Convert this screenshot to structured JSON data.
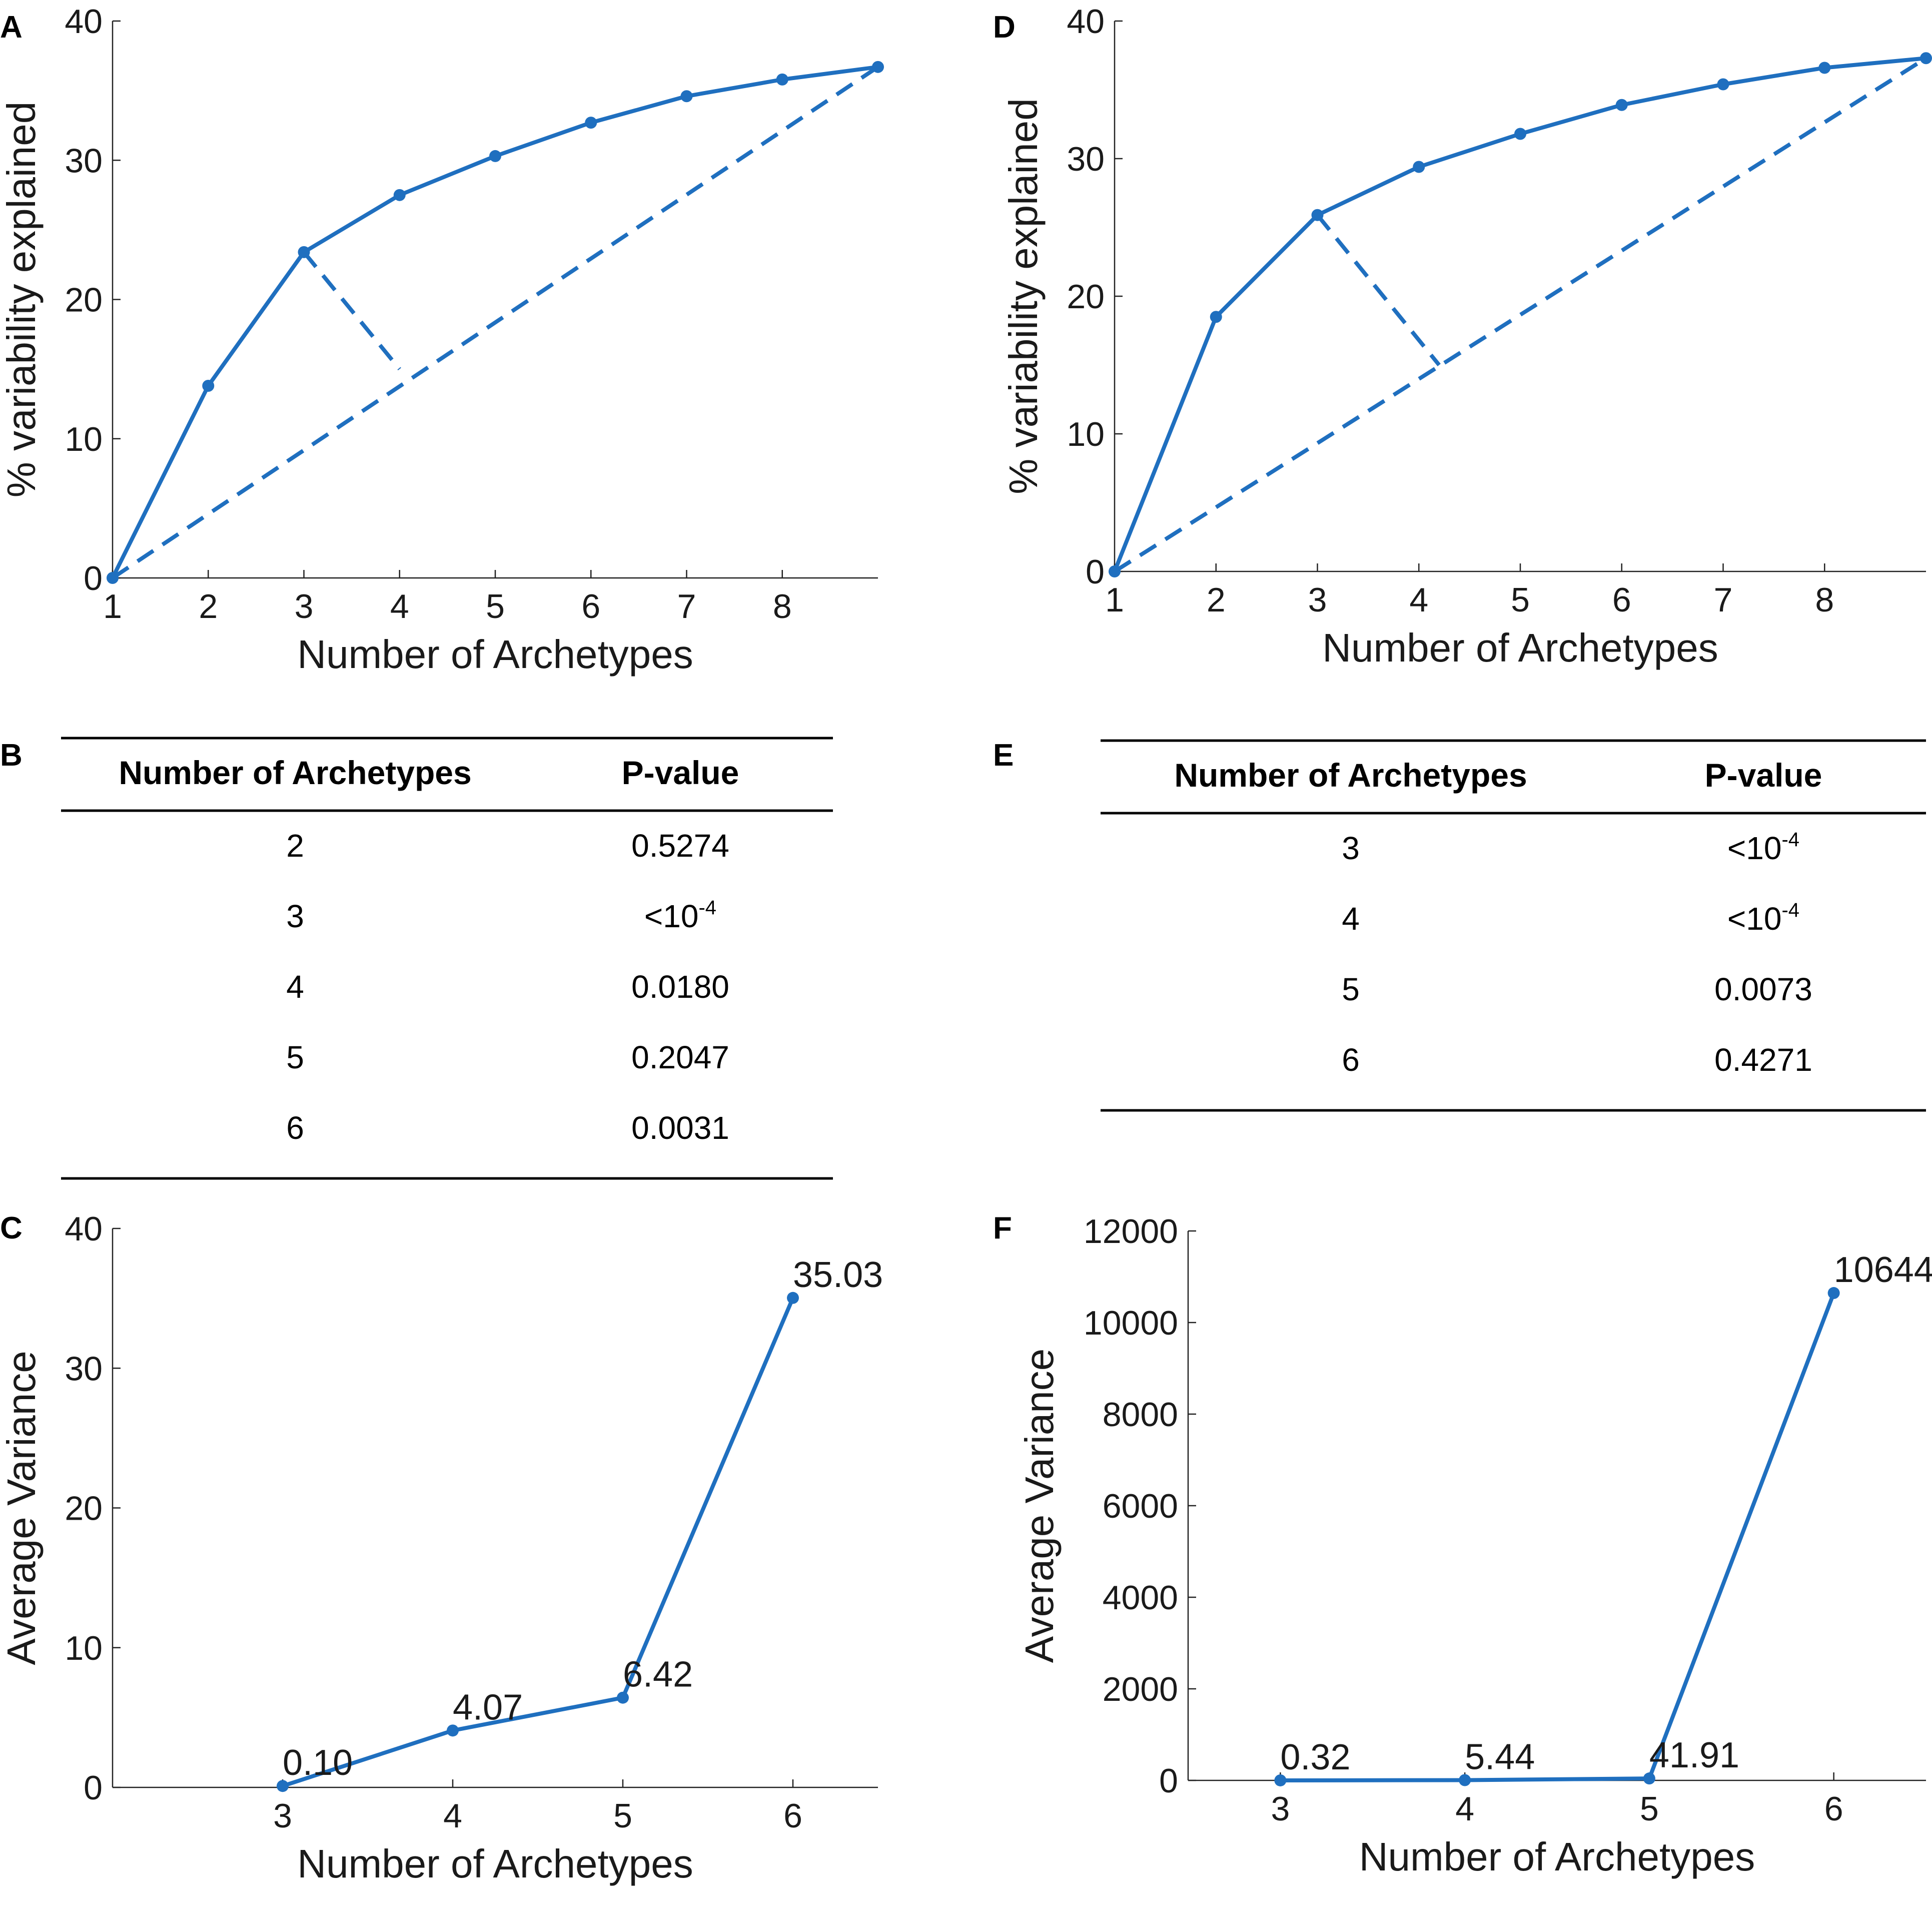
{
  "colors": {
    "line": "#1f6fbf",
    "axis": "#222222",
    "text": "#1a1a1a"
  },
  "panels": {
    "A": {
      "letter": "A"
    },
    "B": {
      "letter": "B"
    },
    "C": {
      "letter": "C"
    },
    "D": {
      "letter": "D"
    },
    "E": {
      "letter": "E"
    },
    "F": {
      "letter": "F"
    }
  },
  "tables": {
    "B": {
      "headers": [
        "Number of Archetypes",
        "P-value"
      ],
      "rows": [
        [
          "2",
          "0.5274"
        ],
        [
          "3",
          "<10",
          "-4"
        ],
        [
          "4",
          "0.0180"
        ],
        [
          "5",
          "0.2047"
        ],
        [
          "6",
          "0.0031"
        ]
      ]
    },
    "E": {
      "headers": [
        "Number of Archetypes",
        "P-value"
      ],
      "rows": [
        [
          "3",
          "<10",
          "-4"
        ],
        [
          "4",
          "<10",
          "-4"
        ],
        [
          "5",
          "0.0073"
        ],
        [
          "6",
          "0.4271"
        ]
      ]
    }
  },
  "chart_data": [
    {
      "id": "A",
      "type": "line",
      "xlabel": "Number of Archetypes",
      "ylabel": "% variability explained",
      "xlim": [
        1,
        9
      ],
      "ylim": [
        0,
        40
      ],
      "xticks": [
        1,
        2,
        3,
        4,
        5,
        6,
        7,
        8
      ],
      "yticks": [
        0,
        10,
        20,
        30,
        40
      ],
      "x": [
        1,
        2,
        3,
        4,
        5,
        6,
        7,
        8,
        9
      ],
      "y": [
        0,
        13.8,
        23.4,
        27.5,
        30.3,
        32.7,
        34.6,
        35.8,
        36.7
      ],
      "reference_line": {
        "from": [
          1,
          0
        ],
        "to": [
          9,
          36.7
        ],
        "style": "dashed"
      },
      "elbow_line": {
        "from": [
          3,
          23.4
        ],
        "to": [
          4,
          15.0
        ],
        "style": "dashed"
      }
    },
    {
      "id": "D",
      "type": "line",
      "xlabel": "Number of Archetypes",
      "ylabel": "% variability explained",
      "xlim": [
        1,
        9
      ],
      "ylim": [
        0,
        40
      ],
      "xticks": [
        1,
        2,
        3,
        4,
        5,
        6,
        7,
        8
      ],
      "yticks": [
        0,
        10,
        20,
        30,
        40
      ],
      "x": [
        1,
        2,
        3,
        4,
        5,
        6,
        7,
        8,
        9
      ],
      "y": [
        0,
        18.5,
        25.9,
        29.4,
        31.8,
        33.9,
        35.4,
        36.6,
        37.3
      ],
      "reference_line": {
        "from": [
          1,
          0
        ],
        "to": [
          9,
          37.3
        ],
        "style": "dashed"
      },
      "elbow_line": {
        "from": [
          3,
          25.9
        ],
        "to": [
          4.2,
          15.0
        ],
        "style": "dashed"
      }
    },
    {
      "id": "C",
      "type": "line",
      "xlabel": "Number of Archetypes",
      "ylabel": "Average Variance",
      "xlim": [
        2.0,
        6.5
      ],
      "ylim": [
        0,
        40
      ],
      "xticks": [
        3,
        4,
        5,
        6
      ],
      "yticks": [
        0,
        10,
        20,
        30,
        40
      ],
      "x": [
        3,
        4,
        5,
        6
      ],
      "y": [
        0.1,
        4.07,
        6.42,
        35.03
      ],
      "labels": [
        "0.10",
        "4.07",
        "6.42",
        "35.03"
      ]
    },
    {
      "id": "F",
      "type": "line",
      "xlabel": "Number of Archetypes",
      "ylabel": "Average Variance",
      "xlim": [
        2.5,
        6.5
      ],
      "ylim": [
        0,
        12000
      ],
      "xticks": [
        3,
        4,
        5,
        6
      ],
      "yticks": [
        0,
        2000,
        4000,
        6000,
        8000,
        10000,
        12000
      ],
      "x": [
        3,
        4,
        5,
        6
      ],
      "y": [
        0.32,
        5.44,
        41.91,
        10644.33
      ],
      "labels": [
        "0.32",
        "5.44",
        "41.91",
        "10644.33"
      ]
    }
  ]
}
